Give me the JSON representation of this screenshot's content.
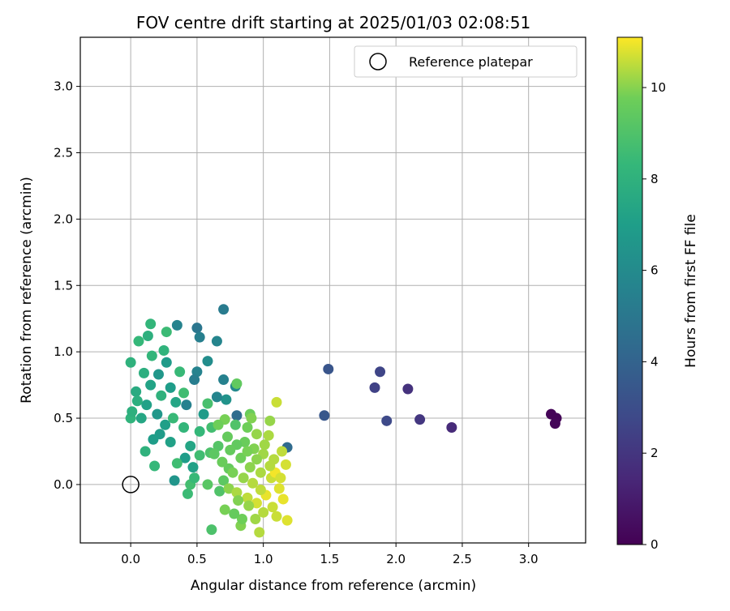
{
  "figure": {
    "title": "FOV centre drift starting at 2025/01/03 02:08:51"
  },
  "chart_data": {
    "type": "scatter",
    "title": "FOV centre drift starting at 2025/01/03 02:08:51",
    "xlabel": "Angular distance from reference (arcmin)",
    "ylabel": "Rotation from reference (arcmin)",
    "xlim": [
      -0.38,
      3.43
    ],
    "ylim": [
      -0.44,
      3.37
    ],
    "xticks": [
      "0.0",
      "0.5",
      "1.0",
      "1.5",
      "2.0",
      "2.5",
      "3.0"
    ],
    "yticks": [
      "0.0",
      "0.5",
      "1.0",
      "1.5",
      "2.0",
      "2.5",
      "3.0"
    ],
    "grid": true,
    "legend": {
      "position": "top-right",
      "label": "Reference platepar"
    },
    "reference_point": {
      "x": 0.0,
      "y": 0.0
    },
    "colorbar": {
      "label": "Hours from first FF file",
      "range": [
        0,
        11.1
      ],
      "ticks": [
        "0",
        "2",
        "4",
        "6",
        "8",
        "10"
      ],
      "colormap": "viridis"
    },
    "series": [
      {
        "color_by": "hours",
        "points": [
          {
            "x": 3.17,
            "y": 0.53,
            "c": 0.1
          },
          {
            "x": 3.21,
            "y": 0.5,
            "c": 0.1
          },
          {
            "x": 3.2,
            "y": 0.46,
            "c": 0.2
          },
          {
            "x": 2.42,
            "y": 0.43,
            "c": 1.5
          },
          {
            "x": 2.18,
            "y": 0.49,
            "c": 2.0
          },
          {
            "x": 2.09,
            "y": 0.72,
            "c": 1.8
          },
          {
            "x": 1.93,
            "y": 0.48,
            "c": 2.8
          },
          {
            "x": 1.88,
            "y": 0.85,
            "c": 2.6
          },
          {
            "x": 1.84,
            "y": 0.73,
            "c": 2.5
          },
          {
            "x": 1.49,
            "y": 0.87,
            "c": 3.3
          },
          {
            "x": 1.46,
            "y": 0.52,
            "c": 3.4
          },
          {
            "x": 1.18,
            "y": 0.28,
            "c": 4.3
          },
          {
            "x": 0.8,
            "y": 0.52,
            "c": 4.4
          },
          {
            "x": 0.5,
            "y": 1.18,
            "c": 4.9
          },
          {
            "x": 0.7,
            "y": 1.32,
            "c": 5.2
          },
          {
            "x": 0.52,
            "y": 1.11,
            "c": 5.4
          },
          {
            "x": 0.65,
            "y": 1.08,
            "c": 5.7
          },
          {
            "x": 0.35,
            "y": 1.2,
            "c": 5.6
          },
          {
            "x": 0.58,
            "y": 0.93,
            "c": 6.1
          },
          {
            "x": 0.5,
            "y": 0.85,
            "c": 5.6
          },
          {
            "x": 0.48,
            "y": 0.79,
            "c": 5.3
          },
          {
            "x": 0.7,
            "y": 0.79,
            "c": 5.5
          },
          {
            "x": 0.79,
            "y": 0.74,
            "c": 5.9
          },
          {
            "x": 0.72,
            "y": 0.64,
            "c": 6.4
          },
          {
            "x": 0.65,
            "y": 0.66,
            "c": 5.7
          },
          {
            "x": 0.42,
            "y": 0.6,
            "c": 5.5
          },
          {
            "x": 0.33,
            "y": 0.03,
            "c": 6.5
          },
          {
            "x": 0.27,
            "y": 0.92,
            "c": 6.8
          },
          {
            "x": 0.21,
            "y": 0.83,
            "c": 6.6
          },
          {
            "x": 0.3,
            "y": 0.73,
            "c": 6.9
          },
          {
            "x": 0.15,
            "y": 0.75,
            "c": 7.2
          },
          {
            "x": 0.12,
            "y": 0.6,
            "c": 7.1
          },
          {
            "x": 0.2,
            "y": 0.53,
            "c": 6.6
          },
          {
            "x": 0.26,
            "y": 0.45,
            "c": 7.0
          },
          {
            "x": 0.22,
            "y": 0.38,
            "c": 6.8
          },
          {
            "x": 0.17,
            "y": 0.34,
            "c": 6.9
          },
          {
            "x": 0.3,
            "y": 0.32,
            "c": 7.1
          },
          {
            "x": 0.45,
            "y": 0.29,
            "c": 7.3
          },
          {
            "x": 0.41,
            "y": 0.2,
            "c": 6.9
          },
          {
            "x": 0.47,
            "y": 0.13,
            "c": 7.1
          },
          {
            "x": 0.55,
            "y": 0.53,
            "c": 6.8
          },
          {
            "x": 0.34,
            "y": 0.62,
            "c": 7.3
          },
          {
            "x": 0.08,
            "y": 0.5,
            "c": 7.4
          },
          {
            "x": 0.04,
            "y": 0.7,
            "c": 7.6
          },
          {
            "x": 0.1,
            "y": 0.84,
            "c": 7.8
          },
          {
            "x": 0.0,
            "y": 0.92,
            "c": 8.0
          },
          {
            "x": 0.06,
            "y": 1.08,
            "c": 8.3
          },
          {
            "x": 0.13,
            "y": 1.12,
            "c": 7.9
          },
          {
            "x": 0.15,
            "y": 1.21,
            "c": 8.2
          },
          {
            "x": 0.27,
            "y": 1.15,
            "c": 8.5
          },
          {
            "x": 0.16,
            "y": 0.97,
            "c": 8.2
          },
          {
            "x": 0.25,
            "y": 1.01,
            "c": 8.1
          },
          {
            "x": 0.37,
            "y": 0.85,
            "c": 8.4
          },
          {
            "x": 0.4,
            "y": 0.69,
            "c": 8.6
          },
          {
            "x": 0.18,
            "y": 0.14,
            "c": 8.3
          },
          {
            "x": 0.11,
            "y": 0.25,
            "c": 8.0
          },
          {
            "x": 0.0,
            "y": 0.5,
            "c": 8.1
          },
          {
            "x": 0.01,
            "y": 0.55,
            "c": 7.9
          },
          {
            "x": 0.05,
            "y": 0.63,
            "c": 7.8
          },
          {
            "x": 0.23,
            "y": 0.67,
            "c": 8.0
          },
          {
            "x": 0.32,
            "y": 0.5,
            "c": 8.4
          },
          {
            "x": 0.4,
            "y": 0.43,
            "c": 8.2
          },
          {
            "x": 0.35,
            "y": 0.16,
            "c": 8.6
          },
          {
            "x": 0.43,
            "y": -0.07,
            "c": 8.5
          },
          {
            "x": 0.45,
            "y": 0.0,
            "c": 8.7
          },
          {
            "x": 0.48,
            "y": 0.05,
            "c": 8.4
          },
          {
            "x": 0.52,
            "y": 0.22,
            "c": 8.6
          },
          {
            "x": 0.58,
            "y": 0.61,
            "c": 8.8
          },
          {
            "x": 0.52,
            "y": 0.4,
            "c": 8.3
          },
          {
            "x": 0.61,
            "y": 0.43,
            "c": 8.7
          },
          {
            "x": 0.61,
            "y": -0.34,
            "c": 8.9
          },
          {
            "x": 0.8,
            "y": 0.76,
            "c": 9.4
          },
          {
            "x": 0.79,
            "y": 0.45,
            "c": 9.0
          },
          {
            "x": 0.66,
            "y": 0.29,
            "c": 9.1
          },
          {
            "x": 0.6,
            "y": 0.24,
            "c": 8.9
          },
          {
            "x": 0.7,
            "y": 0.03,
            "c": 9.3
          },
          {
            "x": 0.67,
            "y": -0.05,
            "c": 9.0
          },
          {
            "x": 0.74,
            "y": 0.12,
            "c": 9.5
          },
          {
            "x": 0.58,
            "y": 0.0,
            "c": 9.2
          },
          {
            "x": 0.71,
            "y": 0.49,
            "c": 9.8
          },
          {
            "x": 0.9,
            "y": 0.53,
            "c": 9.6
          },
          {
            "x": 0.91,
            "y": 0.5,
            "c": 9.9
          },
          {
            "x": 0.95,
            "y": 0.38,
            "c": 10.1
          },
          {
            "x": 1.04,
            "y": 0.37,
            "c": 10.3
          },
          {
            "x": 1.05,
            "y": 0.48,
            "c": 10.1
          },
          {
            "x": 1.1,
            "y": 0.62,
            "c": 10.6
          },
          {
            "x": 1.14,
            "y": 0.25,
            "c": 10.5
          },
          {
            "x": 1.17,
            "y": 0.15,
            "c": 10.7
          },
          {
            "x": 1.08,
            "y": 0.19,
            "c": 10.4
          },
          {
            "x": 1.0,
            "y": 0.23,
            "c": 10.2
          },
          {
            "x": 0.93,
            "y": 0.27,
            "c": 9.9
          },
          {
            "x": 0.86,
            "y": 0.32,
            "c": 9.6
          },
          {
            "x": 0.8,
            "y": 0.3,
            "c": 9.4
          },
          {
            "x": 0.83,
            "y": 0.2,
            "c": 9.7
          },
          {
            "x": 0.9,
            "y": 0.13,
            "c": 10.0
          },
          {
            "x": 0.98,
            "y": 0.09,
            "c": 10.3
          },
          {
            "x": 1.06,
            "y": 0.05,
            "c": 10.6
          },
          {
            "x": 1.12,
            "y": -0.03,
            "c": 10.8
          },
          {
            "x": 1.15,
            "y": -0.11,
            "c": 10.9
          },
          {
            "x": 1.07,
            "y": -0.17,
            "c": 10.6
          },
          {
            "x": 1.0,
            "y": -0.21,
            "c": 10.4
          },
          {
            "x": 0.94,
            "y": -0.26,
            "c": 10.2
          },
          {
            "x": 0.97,
            "y": -0.36,
            "c": 10.4
          },
          {
            "x": 0.83,
            "y": -0.31,
            "c": 9.9
          },
          {
            "x": 0.84,
            "y": -0.26,
            "c": 9.7
          },
          {
            "x": 0.78,
            "y": -0.22,
            "c": 9.5
          },
          {
            "x": 0.71,
            "y": -0.19,
            "c": 9.8
          },
          {
            "x": 0.74,
            "y": -0.03,
            "c": 10.0
          },
          {
            "x": 0.8,
            "y": -0.06,
            "c": 10.3
          },
          {
            "x": 0.88,
            "y": -0.1,
            "c": 10.5
          },
          {
            "x": 0.95,
            "y": -0.14,
            "c": 10.7
          },
          {
            "x": 1.02,
            "y": -0.08,
            "c": 10.9
          },
          {
            "x": 1.09,
            "y": 0.09,
            "c": 11.0
          },
          {
            "x": 1.18,
            "y": -0.27,
            "c": 10.8
          },
          {
            "x": 1.1,
            "y": -0.24,
            "c": 10.6
          },
          {
            "x": 0.92,
            "y": 0.01,
            "c": 10.4
          },
          {
            "x": 0.85,
            "y": 0.05,
            "c": 10.1
          },
          {
            "x": 0.77,
            "y": 0.09,
            "c": 9.8
          },
          {
            "x": 0.69,
            "y": 0.17,
            "c": 9.6
          },
          {
            "x": 0.63,
            "y": 0.23,
            "c": 9.3
          },
          {
            "x": 0.88,
            "y": 0.43,
            "c": 9.7
          },
          {
            "x": 1.01,
            "y": 0.3,
            "c": 10.2
          },
          {
            "x": 0.95,
            "y": 0.19,
            "c": 10.0
          },
          {
            "x": 1.13,
            "y": 0.05,
            "c": 10.7
          },
          {
            "x": 0.98,
            "y": -0.04,
            "c": 10.5
          },
          {
            "x": 0.89,
            "y": -0.16,
            "c": 10.1
          },
          {
            "x": 0.81,
            "y": -0.12,
            "c": 9.9
          },
          {
            "x": 0.75,
            "y": 0.26,
            "c": 9.5
          },
          {
            "x": 0.88,
            "y": 0.25,
            "c": 9.8
          },
          {
            "x": 1.05,
            "y": 0.14,
            "c": 10.4
          },
          {
            "x": 0.73,
            "y": 0.36,
            "c": 9.5
          },
          {
            "x": 0.66,
            "y": 0.45,
            "c": 9.7
          }
        ]
      }
    ]
  }
}
